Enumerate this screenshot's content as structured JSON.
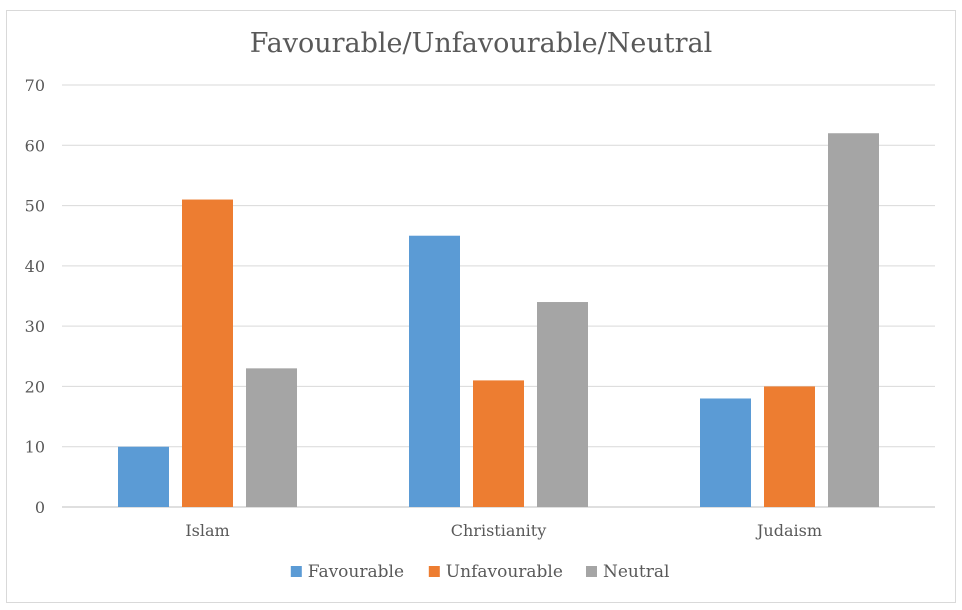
{
  "chart_data": {
    "type": "bar",
    "title": "Favourable/Unfavourable/Neutral",
    "categories": [
      "Islam",
      "Christianity",
      "Judaism"
    ],
    "series": [
      {
        "name": "Favourable",
        "color": "#5b9bd5",
        "values": [
          10,
          45,
          18
        ]
      },
      {
        "name": "Unfavourable",
        "color": "#ed7d31",
        "values": [
          51,
          21,
          20
        ]
      },
      {
        "name": "Neutral",
        "color": "#a5a5a5",
        "values": [
          23,
          34,
          62
        ]
      }
    ],
    "ylim": [
      0,
      70
    ],
    "yticks": [
      "0",
      "10",
      "20",
      "30",
      "40",
      "50",
      "60",
      "70"
    ],
    "grid": true,
    "legend_position": "bottom"
  }
}
